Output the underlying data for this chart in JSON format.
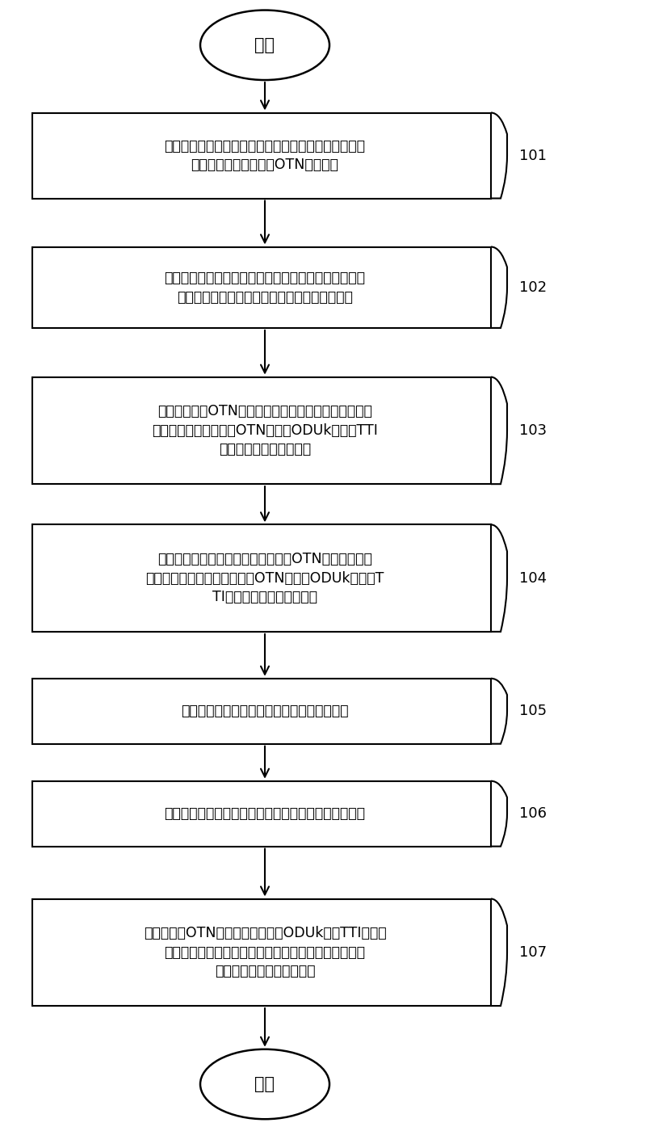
{
  "bg_color": "#ffffff",
  "start_label": "开始",
  "end_label": "结束",
  "boxes": [
    {
      "label": "根据预设的或者自动识别的业务配置管理信息，将输入\n的业务按照分组业务和OTN业务分类",
      "tag": "101",
      "nlines": 2
    },
    {
      "label": "当输入业务为分组业务，输出也是分组业务时，按照现\n行的分组业务路由选择方法进行分组业务的路由",
      "tag": "102",
      "nlines": 2
    },
    {
      "label": "当输入业务为OTN业务时，根据预设的业务路由信息，\n将业务路由信息输入到OTN信号中ODUk开销的TTI\n字节或者其它保留字节中",
      "tag": "103",
      "nlines": 3
    },
    {
      "label": "当输入分组业务信号需要包封映射到OTN信号时，提取\n路由交换信息，转换后输入到OTN信号中ODUk开销的T\nTI字节或者其它保留字节中",
      "tag": "104",
      "nlines": 3
    },
    {
      "label": "在路由选择单元中，定帧模块对信号进行判定",
      "tag": "105",
      "nlines": 1
    },
    {
      "label": "按照现行的分组业务路由选择方法进行分组业务的路由",
      "tag": "106",
      "nlines": 1
    },
    {
      "label": "如果判定是OTN信号，根据提取的ODUk信号TTI或者其\n它保留字节中的地址信息和路由选择单元中的地址表选\n择路由地址，确定传输路径",
      "tag": "107",
      "nlines": 3
    }
  ],
  "box_color": "#ffffff",
  "box_edge_color": "#000000",
  "arrow_color": "#000000",
  "font_color": "#000000",
  "font_size": 12.5,
  "tag_font_size": 13,
  "oval_label_fontsize": 15
}
